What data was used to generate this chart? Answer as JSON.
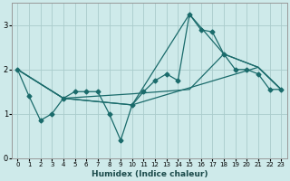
{
  "xlabel": "Humidex (Indice chaleur)",
  "bg_color": "#ceeaea",
  "grid_color": "#aacccc",
  "line_color": "#1a6b6b",
  "xlim": [
    -0.5,
    23.5
  ],
  "ylim": [
    0,
    3.5
  ],
  "yticks": [
    0,
    1,
    2,
    3
  ],
  "xticks": [
    0,
    1,
    2,
    3,
    4,
    5,
    6,
    7,
    8,
    9,
    10,
    11,
    12,
    13,
    14,
    15,
    16,
    17,
    18,
    19,
    20,
    21,
    22,
    23
  ],
  "line1_x": [
    0,
    1,
    2,
    3,
    4,
    5,
    6,
    7,
    8,
    9,
    10,
    11,
    12,
    13,
    14,
    15,
    16,
    17,
    18,
    19,
    20,
    21,
    22,
    23
  ],
  "line1_y": [
    2.0,
    1.4,
    0.85,
    1.0,
    1.35,
    1.5,
    1.5,
    1.5,
    1.0,
    0.4,
    1.2,
    1.5,
    1.75,
    1.9,
    1.75,
    3.25,
    2.9,
    2.85,
    2.35,
    2.0,
    2.0,
    1.9,
    1.55,
    1.55
  ],
  "line2_x": [
    0,
    4,
    10,
    15,
    18,
    21,
    23
  ],
  "line2_y": [
    2.0,
    1.35,
    1.45,
    1.55,
    2.35,
    2.05,
    1.55
  ],
  "line3_x": [
    0,
    4,
    10,
    15,
    18,
    21,
    23
  ],
  "line3_y": [
    2.0,
    1.35,
    1.2,
    3.25,
    2.35,
    2.05,
    1.55
  ],
  "line4_x": [
    0,
    4,
    10,
    21,
    23
  ],
  "line4_y": [
    2.0,
    1.35,
    1.2,
    2.05,
    1.55
  ]
}
